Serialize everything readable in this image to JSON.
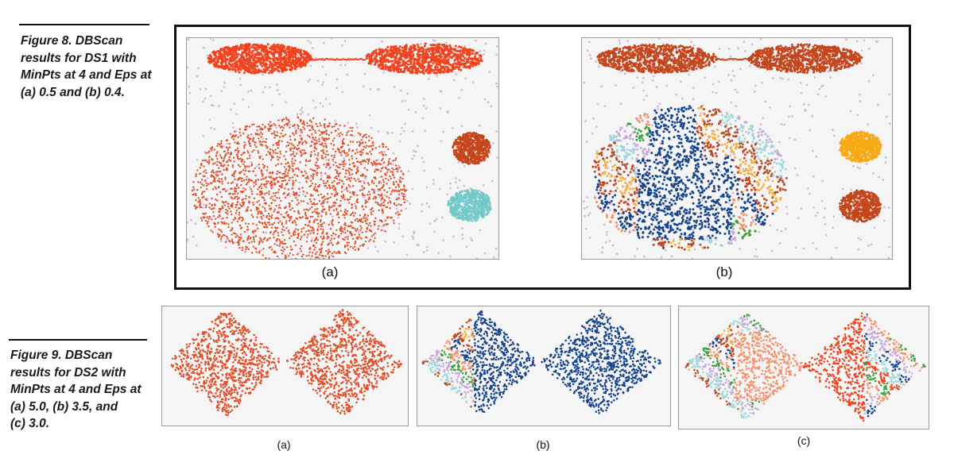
{
  "figure8": {
    "caption": "Figure 8. DBScan\nresults for DS1 with\nMinPts at 4 and Eps at\n(a) 0.5 and (b) 0.4.",
    "panels": [
      {
        "label": "(a)",
        "dataset": "DS1",
        "eps": 0.5,
        "min_pts": 4
      },
      {
        "label": "(b)",
        "dataset": "DS1",
        "eps": 0.4,
        "min_pts": 4
      }
    ]
  },
  "figure9": {
    "caption": "Figure 9. DBScan\nresults for DS2 with\nMinPts at 4 and Eps at\n(a) 5.0, (b) 3.5, and\n(c) 3.0.",
    "panels": [
      {
        "label": "(a)",
        "dataset": "DS2",
        "eps": 5.0,
        "min_pts": 4
      },
      {
        "label": "(b)",
        "dataset": "DS2",
        "eps": 3.5,
        "min_pts": 4
      },
      {
        "label": "(c)",
        "dataset": "DS2",
        "eps": 3.0,
        "min_pts": 4
      }
    ]
  },
  "colors": {
    "noise": "#c9a3cf",
    "red": "#f0431e",
    "orange_red": "#e0502a",
    "rust": "#c5461c",
    "cyan": "#73c9c9",
    "gold": "#f8a813",
    "navy": "#17448f",
    "salmon": "#f4906a",
    "green": "#3aa13c",
    "lavender": "#c8a8d8",
    "light_blue": "#9fd6dc",
    "brown": "#b5522e",
    "yellow_orange": "#f3b24a"
  }
}
